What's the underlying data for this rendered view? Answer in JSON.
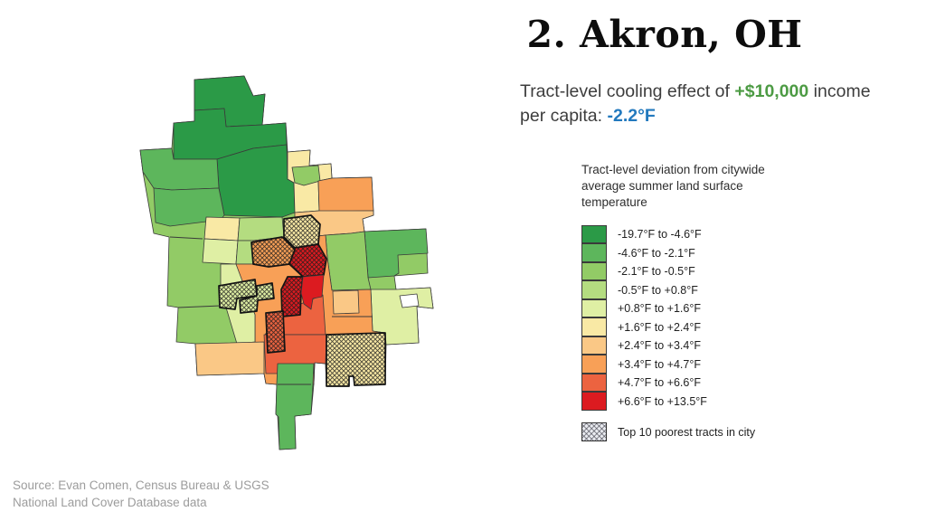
{
  "slide": {
    "title": "2. Akron, OH",
    "subtitle": {
      "prefix": "Tract-level cooling effect of ",
      "income": "+$10,000",
      "middle": " income per capita: ",
      "temp": "-2.2°F",
      "income_color": "#4d9b44",
      "temp_color": "#2279be"
    },
    "source_line1": "Source:  Evan Comen, Census Bureau & USGS",
    "source_line2": "National Land Cover Database data"
  },
  "legend": {
    "title": "Tract-level deviation from citywide average summer land surface temperature",
    "items": [
      {
        "label": "-19.7°F to -4.6°F",
        "color": "#2b9a47"
      },
      {
        "label": "-4.6°F to -2.1°F",
        "color": "#5db65c"
      },
      {
        "label": "-2.1°F to -0.5°F",
        "color": "#92cb66"
      },
      {
        "label": "-0.5°F to +0.8°F",
        "color": "#b4dc80"
      },
      {
        "label": "+0.8°F to +1.6°F",
        "color": "#dfefa4"
      },
      {
        "label": "+1.6°F to +2.4°F",
        "color": "#f9e9a5"
      },
      {
        "label": "+2.4°F to +3.4°F",
        "color": "#fac886"
      },
      {
        "label": "+3.4°F to +4.7°F",
        "color": "#f8a057"
      },
      {
        "label": "+4.7°F to +6.6°F",
        "color": "#ec6340"
      },
      {
        "label": "+6.6°F to +13.5°F",
        "color": "#dc1b20"
      }
    ],
    "hatch_label": "Top 10 poorest tracts in city",
    "hatch_bg": "#e9ebf0"
  },
  "map": {
    "outline_color": "#3a3a3a",
    "hatch_line_color": "#1c1c1c",
    "tracts": [
      {
        "p": "85,8 140,4 150,26 163,24 160,58 186,56 188,88 213,86 212,103 236,101 237,117 281,116 283,158 271,162 273,176 341,173 343,222 306,225 308,240 346,238 349,261 331,259 333,299 297,301 296,345 262,346 261,336 256,336 256,347 231,347 230,322 218,321 217,345 214,378 196,380 197,416 179,417 177,380 175,378 176,345 164,344 162,333 88,335 86,300 65,298 67,260 55,258 57,182 40,178 28,110 25,86 60,84 62,56 85,54",
        "b": 2
      },
      {
        "p": "85,8 140,4 150,26 163,24 160,58 120,60 118,40 85,42",
        "b": 0
      },
      {
        "p": "62,56 85,54 85,42 118,40 120,60 160,58 186,56 187,80 150,84 110,96 62,96",
        "b": 0
      },
      {
        "p": "110,96 150,84 187,80 188,118 195,122 196,155 182,160 118,158 112,128",
        "b": 0
      },
      {
        "p": "25,86 60,84 62,96 110,96 112,128 60,130 40,128 28,110",
        "b": 1
      },
      {
        "p": "40,128 60,130 112,128 118,158 114,163 58,170 42,166",
        "b": 1
      },
      {
        "p": "188,88 213,86 212,103 236,101 237,117 222,120 223,153 196,155 195,122 188,118",
        "b": 5
      },
      {
        "p": "193,105 222,103 224,120 206,125 196,122",
        "b": 2
      },
      {
        "p": "222,120 237,117 281,116 283,153 223,154",
        "b": 7
      },
      {
        "p": "196,155 223,153 283,153 283,158 271,162 273,176 258,178 230,180 196,184",
        "b": 6
      },
      {
        "p": "273,176 341,173 343,200 310,202 311,222 306,225 277,227 275,200",
        "b": 1
      },
      {
        "p": "230,180 258,178 273,176 275,200 277,227 280,240 237,241 232,205",
        "b": 2
      },
      {
        "p": "280,240 308,240 346,238 349,261 331,259 333,299 297,301 296,288 282,286",
        "b": 4
      },
      {
        "p": "312,247 331,245 333,258 315,260",
        "white": true
      },
      {
        "p": "98,160 135,161 133,186 96,184",
        "b": 5
      },
      {
        "p": "96,184 133,186 131,212 94,210",
        "b": 4
      },
      {
        "p": "135,161 182,160 184,182 150,186 133,186",
        "b": 3
      },
      {
        "p": "133,186 150,186 150,212 131,212",
        "b": 3
      },
      {
        "p": "131,212 150,212 150,186 184,182 196,184 230,180 232,205 237,241 280,240 282,286 296,288 296,345 262,346 261,336 256,336 256,347 231,347 230,322 218,321 217,345 176,345 164,344 162,333 152,333 152,268 131,214",
        "b": 7
      },
      {
        "p": "114,212 131,212 152,268 152,298 132,300 114,240",
        "b": 4
      },
      {
        "p": "86,300 162,298 162,333 88,335",
        "b": 6
      },
      {
        "p": "238,242 266,241 267,266 239,267",
        "b": 6
      },
      {
        "p": "183,264 227,246 230,290 163,290",
        "b": 8
      },
      {
        "p": "162,290 231,290 230,322 218,321 217,333 164,333",
        "b": 8
      },
      {
        "p": "177,322 217,322 216,345 214,378 196,380 197,416 179,417 178,381 175,378 176,345",
        "b": 1
      },
      {
        "p": "231,290 296,288 296,345 262,346 261,336 256,336 256,347 231,347",
        "b": 5,
        "h": true
      },
      {
        "p": "112,236 152,229 154,247 132,250 130,262 113,260",
        "b": 4,
        "h": true
      },
      {
        "p": "154,236 171,233 173,250 155,252 154,264 136,266 135,252 154,247",
        "b": 4,
        "h": true
      },
      {
        "p": "148,188 182,182 196,196 190,212 167,215 150,212",
        "b": 7,
        "h": true
      },
      {
        "p": "184,162 214,158 224,168 222,190 196,194 184,182",
        "b": 5,
        "h": true
      },
      {
        "p": "196,194 222,190 231,206 228,224 205,226 190,212 196,196",
        "b": 9,
        "h": true
      },
      {
        "p": "188,226 205,226 203,244 202,268 182,270 181,240",
        "b": 9,
        "h": true
      },
      {
        "p": "205,226 228,224 226,248 216,250 214,262 206,256 203,244",
        "b": 9
      },
      {
        "p": "164,266 183,264 185,308 166,310",
        "b": 8,
        "h": true
      }
    ],
    "lines": [
      "58,182 94,184",
      "67,260 114,258",
      "237,270 282,270",
      "177,345 214,345"
    ]
  }
}
